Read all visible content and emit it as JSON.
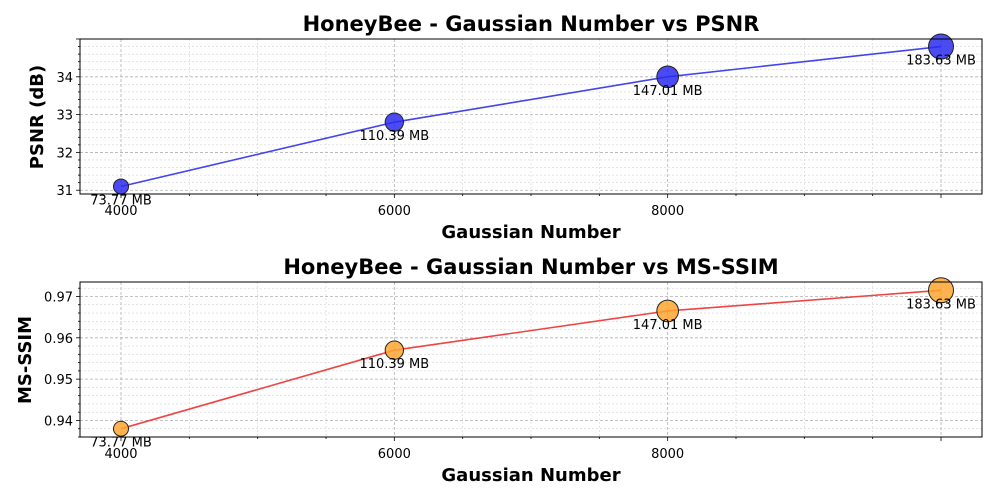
{
  "chart_data": [
    {
      "type": "scatter",
      "title": "HoneyBee - Gaussian Number vs PSNR",
      "xlabel": "Gaussian Number",
      "ylabel": "PSNR (dB)",
      "x": [
        4000,
        6000,
        8000,
        10000
      ],
      "y": [
        31.1,
        32.8,
        34.0,
        34.8
      ],
      "point_labels": [
        "73.77 MB",
        "110.39 MB",
        "147.01 MB",
        "183.63 MB"
      ],
      "sizes": [
        73.77,
        110.39,
        147.01,
        183.63
      ],
      "xlim": [
        3700,
        10300
      ],
      "ylim": [
        30.9,
        35.0
      ],
      "xticks": [
        4000,
        6000,
        8000
      ],
      "xtick_labels": [
        "4000",
        "6000",
        "8000"
      ],
      "yticks": [
        31,
        32,
        33,
        34
      ],
      "ytick_labels": [
        "31",
        "32",
        "33",
        "34"
      ],
      "grid": true,
      "line_color": "#4444ee",
      "marker_color": "#2b2bf0"
    },
    {
      "type": "scatter",
      "title": "HoneyBee - Gaussian Number vs MS-SSIM",
      "xlabel": "Gaussian Number",
      "ylabel": "MS-SSIM",
      "x": [
        4000,
        6000,
        8000,
        10000
      ],
      "y": [
        0.938,
        0.957,
        0.9665,
        0.9715
      ],
      "point_labels": [
        "73.77 MB",
        "110.39 MB",
        "147.01 MB",
        "183.63 MB"
      ],
      "sizes": [
        73.77,
        110.39,
        147.01,
        183.63
      ],
      "xlim": [
        3700,
        10300
      ],
      "ylim": [
        0.936,
        0.9735
      ],
      "xticks": [
        4000,
        6000,
        8000
      ],
      "xtick_labels": [
        "4000",
        "6000",
        "8000"
      ],
      "yticks": [
        0.94,
        0.95,
        0.96,
        0.97
      ],
      "ytick_labels": [
        "0.94",
        "0.95",
        "0.96",
        "0.97"
      ],
      "grid": true,
      "line_color": "#ee4444",
      "marker_color": "#ffa630"
    }
  ]
}
